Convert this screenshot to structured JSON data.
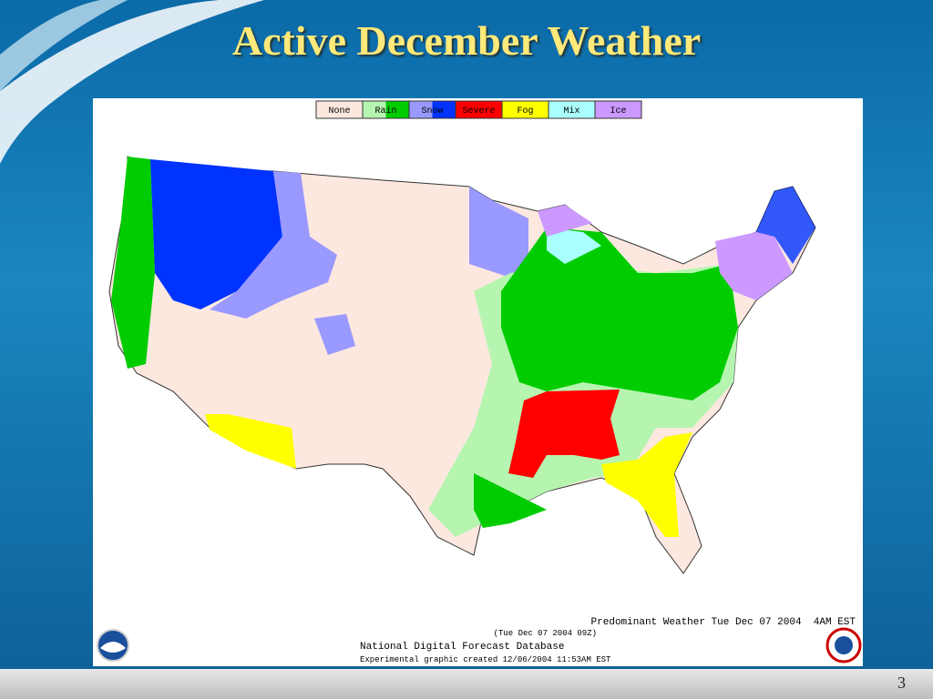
{
  "title": "Active December Weather",
  "legend": [
    {
      "label": "None",
      "colors": [
        "#fde8e0"
      ]
    },
    {
      "label": "Rain",
      "colors": [
        "#b6f5b0",
        "#00cc00"
      ]
    },
    {
      "label": "Snow",
      "colors": [
        "#9999ff",
        "#0033ff"
      ]
    },
    {
      "label": "Severe",
      "colors": [
        "#ff0000"
      ]
    },
    {
      "label": "Fog",
      "colors": [
        "#ffff00"
      ]
    },
    {
      "label": "Mix",
      "colors": [
        "#aaffff"
      ]
    },
    {
      "label": "Ice",
      "colors": [
        "#cc99ff"
      ]
    }
  ],
  "footer": {
    "product": "Predominant Weather Tue Dec 07 2004  4AM EST",
    "valid": "(Tue Dec 07 2004 09Z)",
    "source": "National Digital Forecast Database",
    "created": "Experimental graphic created 12/06/2004 11:53AM EST"
  },
  "page_number": 3
}
